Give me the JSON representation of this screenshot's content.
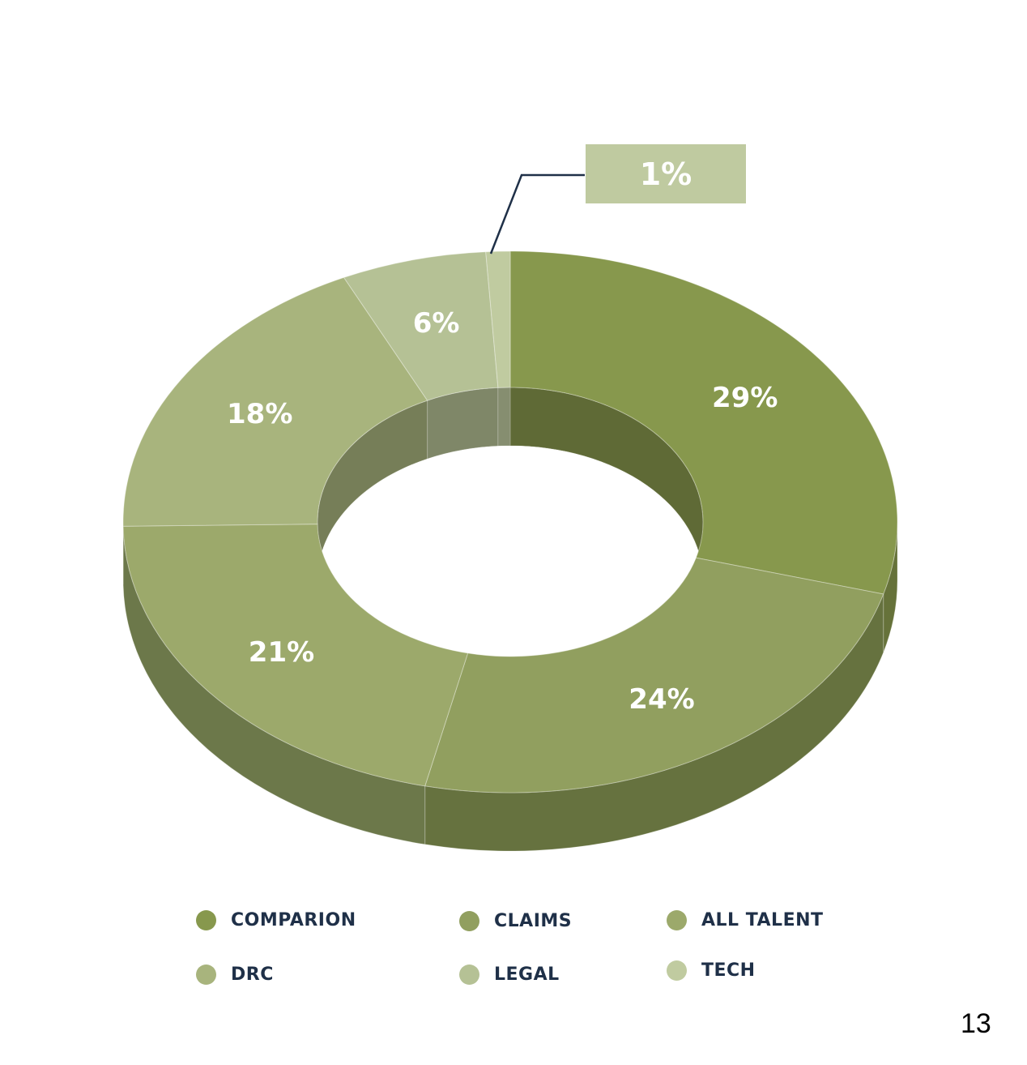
{
  "chart_data": {
    "type": "pie",
    "style": "3d-donut",
    "title": "",
    "slices": [
      {
        "label": "COMPARION",
        "value": 29,
        "display": "29%",
        "color": "#87984d",
        "side": "#66723a"
      },
      {
        "label": "CLAIMS",
        "value": 24,
        "display": "24%",
        "color": "#919f5f",
        "side": "#66723f"
      },
      {
        "label": "ALL TALENT",
        "value": 21,
        "display": "21%",
        "color": "#9ca96b",
        "side": "#6c784a"
      },
      {
        "label": "DRC",
        "value": 18,
        "display": "18%",
        "color": "#a8b47d",
        "side": "#7a8257"
      },
      {
        "label": "LEGAL",
        "value": 6,
        "display": "6%",
        "color": "#b5c195",
        "side": "#828965"
      },
      {
        "label": "TECH",
        "value": 1,
        "display": "1%",
        "color": "#c0cba0",
        "side": "#8a9270"
      }
    ],
    "legend_position": "bottom"
  },
  "callout": {
    "text": "1%",
    "color": "#bfcaa0",
    "line_color": "#1f3048"
  },
  "page_number": "13"
}
